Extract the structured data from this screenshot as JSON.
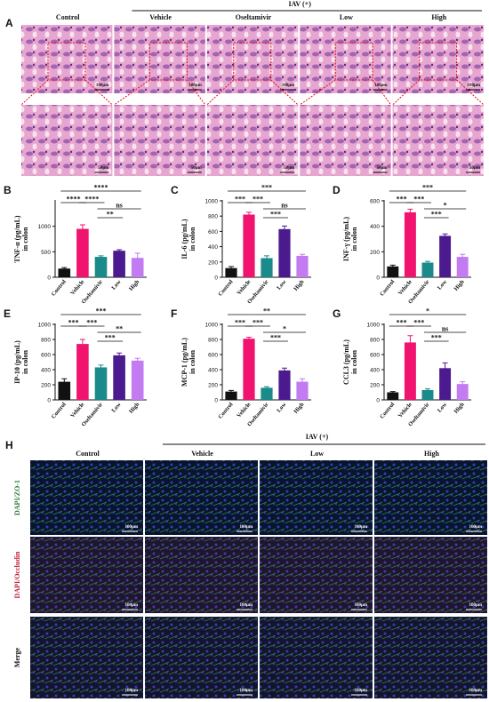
{
  "panel_a": {
    "label": "A",
    "group": "IAV (+)",
    "columns": [
      "Control",
      "Vehicle",
      "Oseltamivir",
      "Low",
      "High"
    ],
    "scale_bars": [
      "100μm",
      "50μm"
    ]
  },
  "chart_data": [
    {
      "type": "bar",
      "panel": "B",
      "ylabel": [
        "TNF-α (pg/mL)",
        "in colon"
      ],
      "categories": [
        "Control",
        "Vehicle",
        "Oseltamivir",
        "Low",
        "High"
      ],
      "values": [
        170,
        950,
        400,
        520,
        380
      ],
      "errors": [
        20,
        80,
        20,
        20,
        90
      ],
      "colors": [
        "#111111",
        "#f0146e",
        "#1a8a8a",
        "#4b1a8f",
        "#c27bf0"
      ],
      "ylim": [
        0,
        1500
      ],
      "yticks": [
        0,
        500,
        1000
      ],
      "significance": [
        "****",
        "****",
        "****",
        "**",
        "ns"
      ]
    },
    {
      "type": "bar",
      "panel": "C",
      "ylabel": [
        "IL-6 (pg/mL)",
        "in colon"
      ],
      "categories": [
        "Control",
        "Vehicle",
        "Oseltamivir",
        "Low",
        "High"
      ],
      "values": [
        120,
        820,
        250,
        630,
        280
      ],
      "errors": [
        20,
        30,
        30,
        40,
        20
      ],
      "colors": [
        "#111111",
        "#f0146e",
        "#1a8a8a",
        "#4b1a8f",
        "#c27bf0"
      ],
      "ylim": [
        0,
        1000
      ],
      "yticks": [
        0,
        200,
        400,
        600,
        800,
        1000
      ],
      "significance": [
        "***",
        "***",
        "***",
        "***",
        "ns"
      ]
    },
    {
      "type": "bar",
      "panel": "D",
      "ylabel": [
        "INF-γ (pg/mL)",
        "in colon"
      ],
      "categories": [
        "Control",
        "Vehicle",
        "Oseltamivir",
        "Low",
        "High"
      ],
      "values": [
        85,
        510,
        115,
        325,
        160
      ],
      "errors": [
        10,
        25,
        10,
        15,
        20
      ],
      "colors": [
        "#111111",
        "#f0146e",
        "#1a8a8a",
        "#4b1a8f",
        "#c27bf0"
      ],
      "ylim": [
        0,
        600
      ],
      "yticks": [
        0,
        200,
        400,
        600
      ],
      "significance": [
        "***",
        "***",
        "***",
        "***",
        "*"
      ]
    },
    {
      "type": "bar",
      "panel": "E",
      "ylabel": [
        "IP-10 (pg/mL)",
        "in colon"
      ],
      "categories": [
        "Control",
        "Vehicle",
        "Oseltamivir",
        "Low",
        "High"
      ],
      "values": [
        240,
        740,
        430,
        590,
        520
      ],
      "errors": [
        40,
        60,
        30,
        30,
        30
      ],
      "colors": [
        "#111111",
        "#f0146e",
        "#1a8a8a",
        "#4b1a8f",
        "#c27bf0"
      ],
      "ylim": [
        0,
        1000
      ],
      "yticks": [
        0,
        200,
        400,
        600,
        800,
        1000
      ],
      "significance": [
        "***",
        "***",
        "***",
        "***",
        "**"
      ]
    },
    {
      "type": "bar",
      "panel": "F",
      "ylabel": [
        "MCP-1 (pg/mL)",
        "in colon"
      ],
      "categories": [
        "Control",
        "Vehicle",
        "Oseltamivir",
        "Low",
        "High"
      ],
      "values": [
        110,
        810,
        160,
        390,
        240
      ],
      "errors": [
        15,
        20,
        15,
        30,
        40
      ],
      "colors": [
        "#111111",
        "#f0146e",
        "#1a8a8a",
        "#4b1a8f",
        "#c27bf0"
      ],
      "ylim": [
        0,
        1000
      ],
      "yticks": [
        0,
        200,
        400,
        600,
        800,
        1000
      ],
      "significance": [
        "***",
        "***",
        "**",
        "***",
        "*"
      ]
    },
    {
      "type": "bar",
      "panel": "G",
      "ylabel": [
        "CCL3 (pg/mL)",
        "in colon"
      ],
      "categories": [
        "Control",
        "Vehicle",
        "Oseltamivir",
        "Low",
        "High"
      ],
      "values": [
        100,
        760,
        130,
        420,
        210
      ],
      "errors": [
        10,
        90,
        15,
        70,
        30
      ],
      "colors": [
        "#111111",
        "#f0146e",
        "#1a8a8a",
        "#4b1a8f",
        "#c27bf0"
      ],
      "ylim": [
        0,
        1000
      ],
      "yticks": [
        0,
        200,
        400,
        600,
        800,
        1000
      ],
      "significance": [
        "***",
        "***",
        "*",
        "***",
        "ns"
      ]
    }
  ],
  "panel_h": {
    "label": "H",
    "group": "IAV (+)",
    "columns": [
      "Control",
      "Vehicle",
      "Low",
      "High"
    ],
    "rows": [
      "DAPI/ZO-1",
      "DAPI/Occludin",
      "Merge"
    ],
    "scale_bar": "100μm"
  }
}
